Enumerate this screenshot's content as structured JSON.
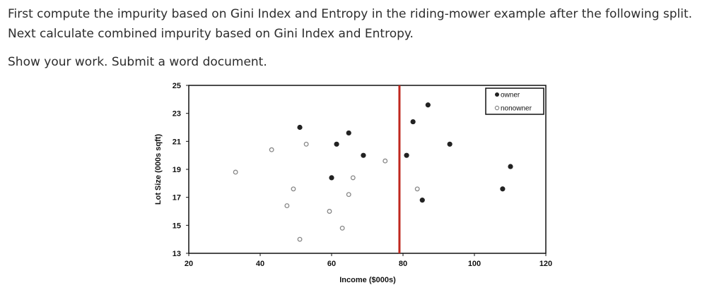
{
  "instructions": {
    "paragraph1": "First compute the impurity based on Gini Index and Entropy in the riding-mower example after the following split. Next calculate combined impurity based on Gini Index and Entropy.",
    "paragraph2": "Show your work. Submit a word document."
  },
  "chart_data": {
    "type": "scatter",
    "title": "",
    "xlabel": "Income ($000s)",
    "ylabel": "Lot Size (000s sqft)",
    "xlim": [
      20,
      120
    ],
    "ylim": [
      13,
      25
    ],
    "xticks": [
      20,
      40,
      60,
      80,
      100,
      120
    ],
    "yticks": [
      13,
      15,
      17,
      19,
      21,
      23,
      25
    ],
    "grid": false,
    "legend_position": "upper right",
    "split_line": {
      "axis": "x",
      "value": 79,
      "color": "#c0281f"
    },
    "series": [
      {
        "name": "owner",
        "marker": "filled-circle",
        "color": "#222222",
        "points": [
          [
            51.1,
            22.0
          ],
          [
            61.4,
            20.8
          ],
          [
            64.8,
            21.6
          ],
          [
            60.0,
            18.4
          ],
          [
            68.9,
            20.0
          ],
          [
            81.0,
            20.0
          ],
          [
            82.8,
            22.4
          ],
          [
            87.0,
            23.6
          ],
          [
            85.4,
            16.8
          ],
          [
            93.1,
            20.8
          ],
          [
            110.1,
            19.2
          ],
          [
            107.9,
            17.6
          ]
        ]
      },
      {
        "name": "nonowner",
        "marker": "open-circle",
        "color": "#888888",
        "points": [
          [
            33.1,
            18.8
          ],
          [
            43.2,
            20.4
          ],
          [
            52.9,
            20.8
          ],
          [
            49.3,
            17.6
          ],
          [
            47.5,
            16.4
          ],
          [
            51.1,
            14.0
          ],
          [
            59.4,
            16.0
          ],
          [
            63.0,
            14.8
          ],
          [
            64.8,
            17.2
          ],
          [
            66.0,
            18.4
          ],
          [
            75.0,
            19.6
          ],
          [
            84.0,
            17.6
          ]
        ]
      }
    ]
  }
}
